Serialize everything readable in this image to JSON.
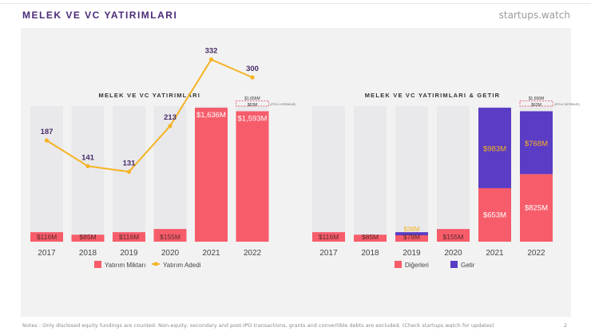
{
  "header": {
    "title": "MELEK VE VC YATIRIMLARI",
    "brand": "startups.watch"
  },
  "footer": {
    "note": "Notes : Only disclosed equity fundings are counted. Non-equity, secondary and post-IPO transactions, grants and convertible debts are excluded. (Check startups.watch for updates)",
    "page": "2"
  },
  "colors": {
    "red": "#f75c6a",
    "purple": "#5b3cc4",
    "orange": "#f5b322",
    "track": "#e9e9ec",
    "panel": "#f2f2f2",
    "title": "#4b2a7a"
  },
  "chart_data": [
    {
      "type": "bar",
      "title": "MELEK VE VC YATIRIMLARI",
      "categories": [
        "2017",
        "2018",
        "2019",
        "2020",
        "2021",
        "2022"
      ],
      "series": [
        {
          "name": "Yatırım Miktarı",
          "values": [
            116,
            85,
            116,
            155,
            1636,
            1593
          ],
          "labels": [
            "$116M",
            "$85M",
            "$116M",
            "$155M",
            "$1,636M",
            "$1,593M"
          ],
          "color": "#f75c6a"
        },
        {
          "name": "Yatırım Adedi",
          "type": "line",
          "values": [
            187,
            141,
            131,
            213,
            332,
            300
          ],
          "color": "#f5b322"
        }
      ],
      "annotations": {
        "total_2022": "$1,656M",
        "ipo_2022": "$63M",
        "ipo_note": "(IPO'LU YATIRIMLAR)"
      },
      "ylim": [
        0,
        1656
      ],
      "legend": "bottom"
    },
    {
      "type": "bar",
      "title": "MELEK VE VC YATIRIMLARI & GETIR",
      "categories": [
        "2017",
        "2018",
        "2019",
        "2020",
        "2021",
        "2022"
      ],
      "series": [
        {
          "name": "Diğerleri",
          "values": [
            116,
            85,
            78,
            155,
            653,
            825
          ],
          "labels": [
            "$116M",
            "$85M",
            "$78M",
            "$155M",
            "$653M",
            "$825M"
          ],
          "color": "#f75c6a"
        },
        {
          "name": "Getir",
          "values": [
            0,
            0,
            38,
            0,
            983,
            768
          ],
          "labels": [
            "",
            "",
            "$38M",
            "",
            "$983M",
            "$768M"
          ],
          "color": "#5b3cc4"
        }
      ],
      "annotations": {
        "total_2022": "$1,656M",
        "ipo_2022": "$63M",
        "ipo_note": "(IPO'LU YATIRIMLAR)"
      },
      "ylim": [
        0,
        1656
      ],
      "legend": "bottom"
    }
  ]
}
